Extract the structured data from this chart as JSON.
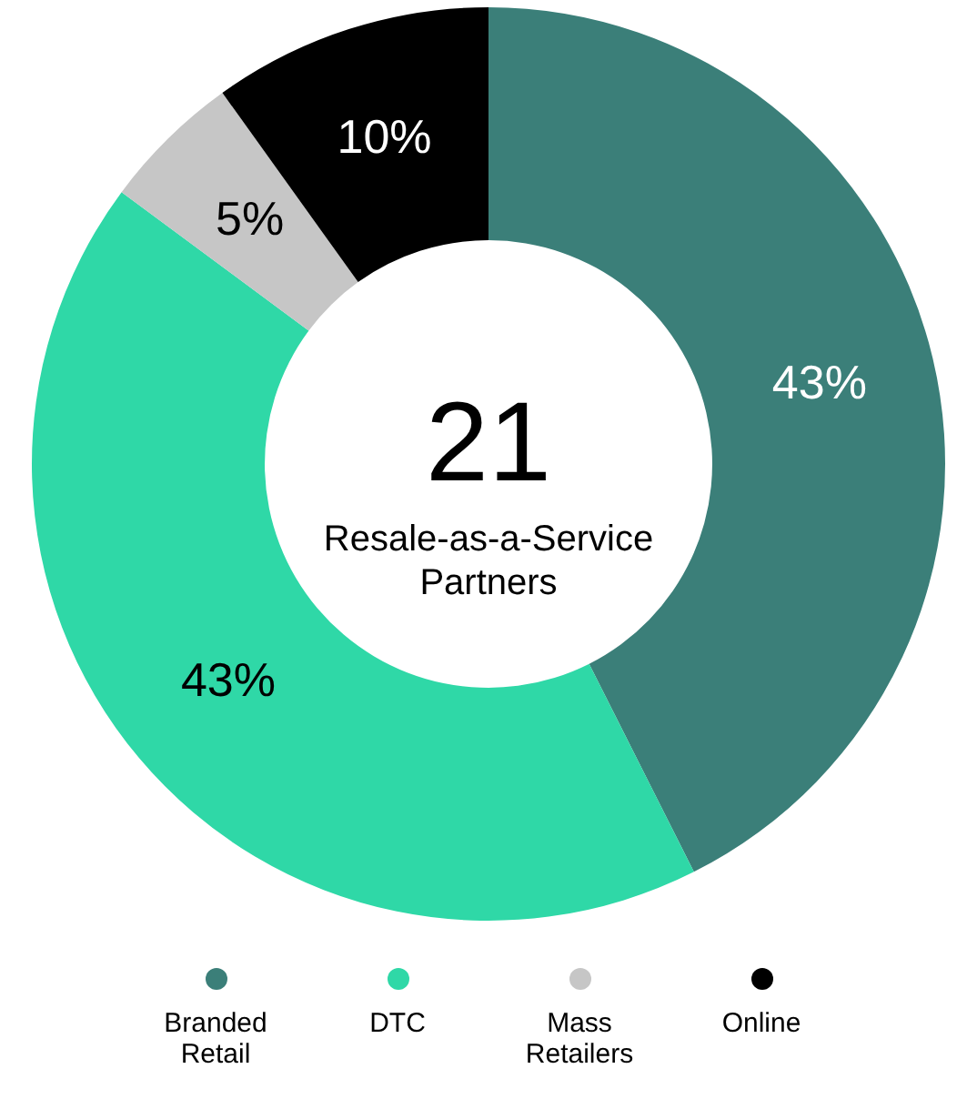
{
  "chart_data": {
    "type": "donut",
    "categories": [
      "Branded Retail",
      "DTC",
      "Mass Retailers",
      "Online"
    ],
    "values": [
      43,
      43,
      5,
      10
    ],
    "colors": [
      "#3b7f79",
      "#2fd8a7",
      "#c6c6c6",
      "#000000"
    ],
    "value_labels": [
      "43%",
      "43%",
      "5%",
      "10%"
    ],
    "annotations": [
      "21",
      "Resale-as-a-Service Partners"
    ],
    "legend": "bottom"
  }
}
